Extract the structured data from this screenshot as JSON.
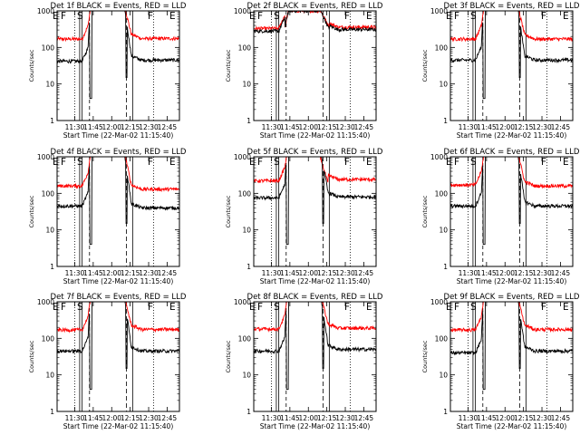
{
  "chart_data": [
    {
      "type": "line",
      "title": "Det 1f BLACK = Events, RED = LLD",
      "xlabel": "Start Time (22-Mar-02 11:15:40)",
      "ylabel": "Counts/sec",
      "yscale": "log",
      "ylim": [
        1,
        1000
      ],
      "xlim": [
        "11:15:40",
        "12:55:00"
      ],
      "grid": false,
      "x_ticks": [
        "11:30",
        "11:45",
        "12:00",
        "12:15",
        "12:30",
        "12:45"
      ],
      "y_ticks": [
        "1",
        "10",
        "100",
        "1000"
      ],
      "markers": [
        "E",
        "F",
        "S",
        "F",
        "E"
      ],
      "series": [
        {
          "color": "#ff0000",
          "pattern": "high",
          "base": 190,
          "pre": 170,
          "post": 175
        },
        {
          "color": "#000000",
          "pattern": "standard",
          "base": 50,
          "pre": 42,
          "post": 45
        }
      ]
    },
    {
      "type": "line",
      "title": "Det 2f BLACK = Events, RED = LLD",
      "xlabel": "Start Time (22-Mar-02 11:15:40)",
      "ylabel": "Counts/sec",
      "yscale": "log",
      "ylim": [
        1,
        1000
      ],
      "xlim": [
        "11:15:40",
        "12:55:00"
      ],
      "grid": false,
      "x_ticks": [
        "11:30",
        "11:45",
        "12:00",
        "12:15",
        "12:30",
        "12:45"
      ],
      "y_ticks": [
        "1",
        "10",
        "100",
        "1000"
      ],
      "markers": [
        "E",
        "F",
        "S",
        "F",
        "E"
      ],
      "series": [
        {
          "color": "#ff0000",
          "pattern": "plateau",
          "base": 350,
          "pre": 330,
          "post": 360
        },
        {
          "color": "#000000",
          "pattern": "plateau",
          "base": 300,
          "pre": 280,
          "post": 310
        }
      ]
    },
    {
      "type": "line",
      "title": "Det 3f BLACK = Events, RED = LLD",
      "xlabel": "Start Time (22-Mar-02 11:15:40)",
      "ylabel": "Counts/sec",
      "yscale": "log",
      "ylim": [
        1,
        1000
      ],
      "xlim": [
        "11:15:40",
        "12:55:00"
      ],
      "grid": false,
      "x_ticks": [
        "11:30",
        "11:45",
        "12:00",
        "12:15",
        "12:30",
        "12:45"
      ],
      "y_ticks": [
        "1",
        "10",
        "100",
        "1000"
      ],
      "markers": [
        "E",
        "F",
        "S",
        "F",
        "E"
      ],
      "series": [
        {
          "color": "#ff0000",
          "pattern": "high",
          "base": 175,
          "pre": 170,
          "post": 170
        },
        {
          "color": "#000000",
          "pattern": "standard",
          "base": 50,
          "pre": 45,
          "post": 45
        }
      ]
    },
    {
      "type": "line",
      "title": "Det 4f BLACK = Events, RED = LLD",
      "xlabel": "Start Time (22-Mar-02 11:15:40)",
      "ylabel": "Counts/sec",
      "yscale": "log",
      "ylim": [
        1,
        1000
      ],
      "xlim": [
        "11:15:40",
        "12:55:00"
      ],
      "grid": false,
      "x_ticks": [
        "11:30",
        "11:45",
        "12:00",
        "12:15",
        "12:30",
        "12:45"
      ],
      "y_ticks": [
        "1",
        "10",
        "100",
        "1000"
      ],
      "markers": [
        "E",
        "F",
        "S",
        "F",
        "E"
      ],
      "series": [
        {
          "color": "#ff0000",
          "pattern": "high",
          "base": 150,
          "pre": 160,
          "post": 130
        },
        {
          "color": "#000000",
          "pattern": "standard",
          "base": 45,
          "pre": 45,
          "post": 40
        }
      ]
    },
    {
      "type": "line",
      "title": "Det 5f BLACK = Events, RED = LLD",
      "xlabel": "Start Time (22-Mar-02 11:15:40)",
      "ylabel": "Counts/sec",
      "yscale": "log",
      "ylim": [
        1,
        1000
      ],
      "xlim": [
        "11:15:40",
        "12:55:00"
      ],
      "grid": false,
      "x_ticks": [
        "11:30",
        "11:45",
        "12:00",
        "12:15",
        "12:30",
        "12:45"
      ],
      "y_ticks": [
        "1",
        "10",
        "100",
        "1000"
      ],
      "markers": [
        "E",
        "F",
        "S",
        "F",
        "E"
      ],
      "series": [
        {
          "color": "#ff0000",
          "pattern": "wide",
          "base": 240,
          "pre": 220,
          "post": 240
        },
        {
          "color": "#000000",
          "pattern": "standard",
          "base": 80,
          "pre": 75,
          "post": 80
        }
      ]
    },
    {
      "type": "line",
      "title": "Det 6f BLACK = Events, RED = LLD",
      "xlabel": "Start Time (22-Mar-02 11:15:40)",
      "ylabel": "Counts/sec",
      "yscale": "log",
      "ylim": [
        1,
        1000
      ],
      "xlim": [
        "11:15:40",
        "12:55:00"
      ],
      "grid": false,
      "x_ticks": [
        "11:30",
        "11:45",
        "12:00",
        "12:15",
        "12:30",
        "12:45"
      ],
      "y_ticks": [
        "1",
        "10",
        "100",
        "1000"
      ],
      "markers": [
        "E",
        "F",
        "S",
        "F",
        "E"
      ],
      "series": [
        {
          "color": "#ff0000",
          "pattern": "high",
          "base": 160,
          "pre": 170,
          "post": 160
        },
        {
          "color": "#000000",
          "pattern": "standard",
          "base": 45,
          "pre": 45,
          "post": 45
        }
      ]
    },
    {
      "type": "line",
      "title": "Det 7f BLACK = Events, RED = LLD",
      "xlabel": "Start Time (22-Mar-02 11:15:40)",
      "ylabel": "Counts/sec",
      "yscale": "log",
      "ylim": [
        1,
        1000
      ],
      "xlim": [
        "11:15:40",
        "12:55:00"
      ],
      "grid": false,
      "x_ticks": [
        "11:30",
        "11:45",
        "12:00",
        "12:15",
        "12:30",
        "12:45"
      ],
      "y_ticks": [
        "1",
        "10",
        "100",
        "1000"
      ],
      "markers": [
        "E",
        "F",
        "S",
        "F",
        "E"
      ],
      "series": [
        {
          "color": "#ff0000",
          "pattern": "high",
          "base": 180,
          "pre": 170,
          "post": 175
        },
        {
          "color": "#000000",
          "pattern": "standard",
          "base": 50,
          "pre": 45,
          "post": 45
        }
      ]
    },
    {
      "type": "line",
      "title": "Det 8f BLACK = Events, RED = LLD",
      "xlabel": "Start Time (22-Mar-02 11:15:40)",
      "ylabel": "Counts/sec",
      "yscale": "log",
      "ylim": [
        1,
        1000
      ],
      "xlim": [
        "11:15:40",
        "12:55:00"
      ],
      "grid": false,
      "x_ticks": [
        "11:30",
        "11:45",
        "12:00",
        "12:15",
        "12:30",
        "12:45"
      ],
      "y_ticks": [
        "1",
        "10",
        "100",
        "1000"
      ],
      "markers": [
        "E",
        "F",
        "S",
        "F",
        "E"
      ],
      "series": [
        {
          "color": "#ff0000",
          "pattern": "high",
          "base": 190,
          "pre": 180,
          "post": 190
        },
        {
          "color": "#000000",
          "pattern": "standard",
          "base": 50,
          "pre": 45,
          "post": 50
        }
      ]
    },
    {
      "type": "line",
      "title": "Det 9f BLACK = Events, RED = LLD",
      "xlabel": "Start Time (22-Mar-02 11:15:40)",
      "ylabel": "Counts/sec",
      "yscale": "log",
      "ylim": [
        1,
        1000
      ],
      "xlim": [
        "11:15:40",
        "12:55:00"
      ],
      "grid": false,
      "x_ticks": [
        "11:30",
        "11:45",
        "12:00",
        "12:15",
        "12:30",
        "12:45"
      ],
      "y_ticks": [
        "1",
        "10",
        "100",
        "1000"
      ],
      "markers": [
        "E",
        "F",
        "S",
        "F",
        "E"
      ],
      "series": [
        {
          "color": "#ff0000",
          "pattern": "high",
          "base": 180,
          "pre": 170,
          "post": 175
        },
        {
          "color": "#000000",
          "pattern": "standard",
          "base": 45,
          "pre": 40,
          "post": 45
        }
      ]
    }
  ]
}
